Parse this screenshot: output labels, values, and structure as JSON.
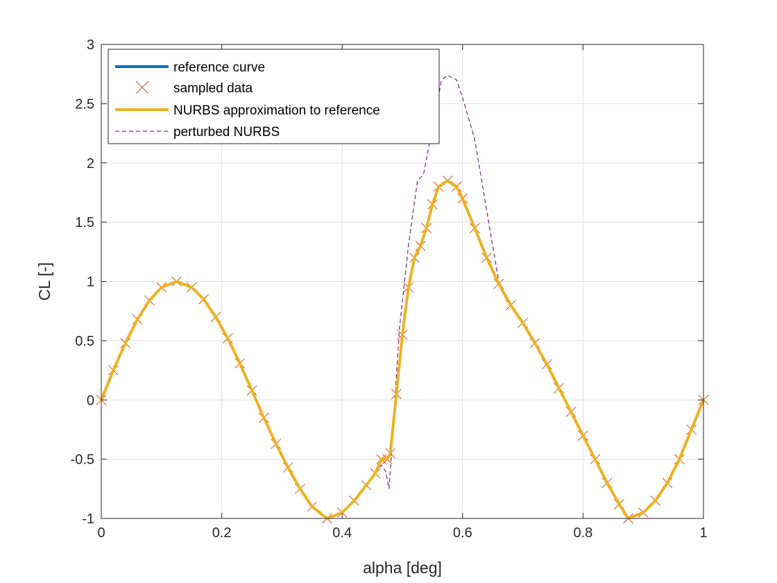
{
  "chart_data": {
    "type": "line",
    "xlabel": "alpha [deg]",
    "ylabel": "CL [-]",
    "xlim": [
      0,
      1
    ],
    "ylim": [
      -1,
      3
    ],
    "xticks": [
      0,
      0.2,
      0.4,
      0.6,
      0.8,
      1
    ],
    "xtick_labels": [
      "0",
      "0.2",
      "0.4",
      "0.6",
      "0.8",
      "1"
    ],
    "yticks": [
      -1,
      -0.5,
      0,
      0.5,
      1,
      1.5,
      2,
      2.5,
      3
    ],
    "ytick_labels": [
      "-1",
      "-0.5",
      "0",
      "0.5",
      "1",
      "1.5",
      "2",
      "2.5",
      "3"
    ],
    "grid": true,
    "legend_position": "top-left",
    "series": [
      {
        "name": "reference curve",
        "style": "solid",
        "color": "#0072BD",
        "x": [
          0,
          0.02,
          0.04,
          0.06,
          0.08,
          0.1,
          0.125,
          0.15,
          0.17,
          0.19,
          0.21,
          0.23,
          0.25,
          0.27,
          0.29,
          0.31,
          0.33,
          0.35,
          0.375,
          0.4,
          0.42,
          0.44,
          0.455,
          0.465,
          0.475,
          0.48,
          0.49,
          0.5,
          0.51,
          0.52,
          0.53,
          0.54,
          0.55,
          0.56,
          0.575,
          0.59,
          0.6,
          0.62,
          0.64,
          0.66,
          0.68,
          0.7,
          0.72,
          0.74,
          0.76,
          0.78,
          0.8,
          0.82,
          0.84,
          0.86,
          0.875,
          0.9,
          0.92,
          0.94,
          0.96,
          0.98,
          1
        ],
        "y": [
          0,
          0.25,
          0.48,
          0.68,
          0.84,
          0.95,
          1.0,
          0.95,
          0.85,
          0.7,
          0.52,
          0.31,
          0.08,
          -0.15,
          -0.37,
          -0.57,
          -0.75,
          -0.9,
          -1.0,
          -0.95,
          -0.85,
          -0.72,
          -0.62,
          -0.5,
          -0.5,
          -0.45,
          0.05,
          0.55,
          0.95,
          1.2,
          1.3,
          1.45,
          1.65,
          1.8,
          1.85,
          1.8,
          1.7,
          1.45,
          1.2,
          0.98,
          0.8,
          0.65,
          0.48,
          0.3,
          0.1,
          -0.1,
          -0.3,
          -0.5,
          -0.7,
          -0.88,
          -1.0,
          -0.95,
          -0.85,
          -0.7,
          -0.5,
          -0.25,
          0
        ]
      },
      {
        "name": "sampled data",
        "style": "markers",
        "color": "#D95319",
        "x": [
          0,
          0.02,
          0.04,
          0.06,
          0.08,
          0.1,
          0.125,
          0.15,
          0.17,
          0.19,
          0.21,
          0.23,
          0.25,
          0.27,
          0.29,
          0.31,
          0.33,
          0.35,
          0.375,
          0.4,
          0.42,
          0.44,
          0.455,
          0.465,
          0.475,
          0.48,
          0.49,
          0.5,
          0.51,
          0.52,
          0.53,
          0.54,
          0.55,
          0.56,
          0.575,
          0.59,
          0.6,
          0.62,
          0.64,
          0.66,
          0.68,
          0.7,
          0.72,
          0.74,
          0.76,
          0.78,
          0.8,
          0.82,
          0.84,
          0.86,
          0.875,
          0.9,
          0.92,
          0.94,
          0.96,
          0.98,
          1
        ],
        "y": [
          0,
          0.25,
          0.48,
          0.68,
          0.84,
          0.95,
          1.0,
          0.95,
          0.85,
          0.7,
          0.52,
          0.31,
          0.08,
          -0.15,
          -0.37,
          -0.57,
          -0.75,
          -0.9,
          -1.0,
          -0.95,
          -0.85,
          -0.72,
          -0.62,
          -0.5,
          -0.5,
          -0.45,
          0.05,
          0.55,
          0.95,
          1.2,
          1.3,
          1.45,
          1.65,
          1.8,
          1.85,
          1.8,
          1.7,
          1.45,
          1.2,
          0.98,
          0.8,
          0.65,
          0.48,
          0.3,
          0.1,
          -0.1,
          -0.3,
          -0.5,
          -0.7,
          -0.88,
          -1.0,
          -0.95,
          -0.85,
          -0.7,
          -0.5,
          -0.25,
          0
        ]
      },
      {
        "name": "NURBS approximation to reference",
        "style": "solid",
        "color": "#EDB120",
        "x": [
          0,
          0.02,
          0.04,
          0.06,
          0.08,
          0.1,
          0.125,
          0.15,
          0.17,
          0.19,
          0.21,
          0.23,
          0.25,
          0.27,
          0.29,
          0.31,
          0.33,
          0.35,
          0.375,
          0.4,
          0.42,
          0.44,
          0.455,
          0.465,
          0.475,
          0.48,
          0.49,
          0.5,
          0.51,
          0.52,
          0.53,
          0.54,
          0.55,
          0.56,
          0.575,
          0.59,
          0.6,
          0.62,
          0.64,
          0.66,
          0.68,
          0.7,
          0.72,
          0.74,
          0.76,
          0.78,
          0.8,
          0.82,
          0.84,
          0.86,
          0.875,
          0.9,
          0.92,
          0.94,
          0.96,
          0.98,
          1
        ],
        "y": [
          0,
          0.25,
          0.48,
          0.68,
          0.84,
          0.95,
          1.0,
          0.95,
          0.85,
          0.7,
          0.52,
          0.31,
          0.08,
          -0.15,
          -0.37,
          -0.57,
          -0.75,
          -0.9,
          -1.0,
          -0.95,
          -0.85,
          -0.72,
          -0.62,
          -0.5,
          -0.5,
          -0.45,
          0.05,
          0.55,
          0.95,
          1.2,
          1.3,
          1.45,
          1.65,
          1.8,
          1.85,
          1.8,
          1.7,
          1.45,
          1.2,
          0.98,
          0.8,
          0.65,
          0.48,
          0.3,
          0.1,
          -0.1,
          -0.3,
          -0.5,
          -0.7,
          -0.88,
          -1.0,
          -0.95,
          -0.85,
          -0.7,
          -0.5,
          -0.25,
          0
        ]
      },
      {
        "name": "perturbed NURBS",
        "style": "dashed",
        "color": "#7E2F8E",
        "x": [
          0,
          0.02,
          0.04,
          0.06,
          0.08,
          0.1,
          0.125,
          0.15,
          0.17,
          0.19,
          0.21,
          0.23,
          0.25,
          0.27,
          0.29,
          0.31,
          0.33,
          0.35,
          0.375,
          0.4,
          0.42,
          0.44,
          0.455,
          0.465,
          0.472,
          0.478,
          0.485,
          0.495,
          0.51,
          0.525,
          0.535,
          0.55,
          0.565,
          0.575,
          0.59,
          0.6,
          0.62,
          0.635,
          0.65,
          0.66,
          0.68,
          0.7,
          0.72,
          0.74,
          0.76,
          0.78,
          0.8,
          0.82,
          0.84,
          0.86,
          0.875,
          0.9,
          0.92,
          0.94,
          0.96,
          0.98,
          1
        ],
        "y": [
          0,
          0.25,
          0.48,
          0.68,
          0.84,
          0.95,
          1.0,
          0.95,
          0.85,
          0.7,
          0.52,
          0.31,
          0.08,
          -0.15,
          -0.37,
          -0.57,
          -0.75,
          -0.9,
          -1.0,
          -0.95,
          -0.85,
          -0.72,
          -0.62,
          -0.55,
          -0.6,
          -0.75,
          -0.2,
          0.6,
          1.3,
          1.85,
          1.9,
          2.3,
          2.7,
          2.74,
          2.7,
          2.55,
          2.2,
          1.75,
          1.3,
          1.0,
          0.8,
          0.65,
          0.48,
          0.3,
          0.1,
          -0.1,
          -0.3,
          -0.5,
          -0.7,
          -0.88,
          -1.0,
          -0.95,
          -0.85,
          -0.7,
          -0.5,
          -0.25,
          0
        ]
      }
    ]
  }
}
